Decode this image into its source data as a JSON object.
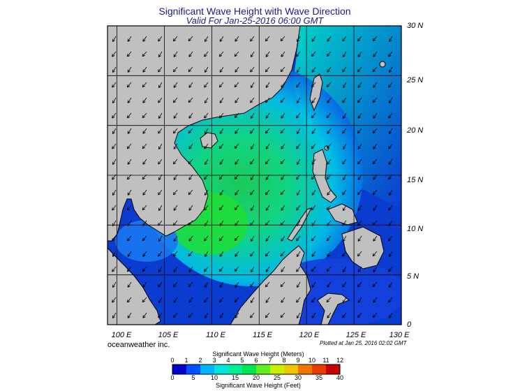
{
  "title": "Significant Wave Height with Wave Direction",
  "subtitle": "Valid For Jan-25-2016 06:00 GMT",
  "credit": "oceanweather inc.",
  "plotted": "Plotted at Jan 25, 2016 02:02 GMT",
  "lat_labels": [
    "30 N",
    "25 N",
    "20 N",
    "15 N",
    "10 N",
    "5 N",
    "0"
  ],
  "lon_labels": [
    "100 E",
    "105 E",
    "110 E",
    "115 E",
    "120 E",
    "125 E",
    "130 E"
  ],
  "colorbar": {
    "title_top": "Significant Wave Height (Meters)",
    "title_bottom": "Significant Wave Height (Feet)",
    "meters_ticks": [
      "0",
      "1",
      "2",
      "3",
      "4",
      "5",
      "6",
      "7",
      "8",
      "9",
      "10",
      "11",
      "12"
    ],
    "feet_ticks": [
      "0",
      "5",
      "10",
      "15",
      "20",
      "25",
      "30",
      "35",
      "40"
    ],
    "colors": [
      "#0000c8",
      "#0050ff",
      "#00b4ff",
      "#00e6dc",
      "#00f096",
      "#00e650",
      "#60f020",
      "#c8f000",
      "#f0c800",
      "#f07800",
      "#e63c00",
      "#c80000"
    ]
  },
  "map": {
    "land_color": "#c0c0c0",
    "extent": {
      "lon_min": 99,
      "lon_max": 130,
      "lat_min": 0,
      "lat_max": 30
    },
    "grid_lon": [
      100,
      105,
      110,
      115,
      120,
      125
    ],
    "grid_lat": [
      5,
      10,
      15,
      20,
      25
    ]
  }
}
